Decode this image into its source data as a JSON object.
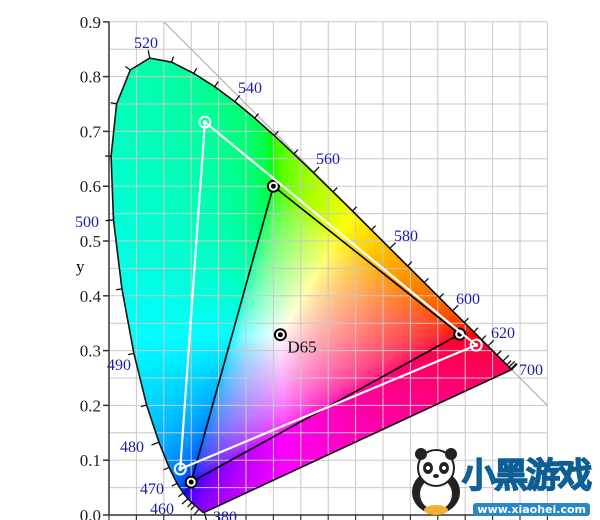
{
  "chart_data": {
    "type": "chromaticity-diagram",
    "ylabel": "y",
    "xlabel": "",
    "xlim": [
      0,
      0.8
    ],
    "ylim": [
      0,
      0.9
    ],
    "grid": true,
    "y_tick_labels": [
      "0.0",
      "0.1",
      "0.2",
      "0.3",
      "0.4",
      "0.5",
      "0.6",
      "0.7",
      "0.8",
      "0.9"
    ],
    "y_ticks": [
      0,
      0.1,
      0.2,
      0.3,
      0.4,
      0.5,
      0.6,
      0.7,
      0.8,
      0.9
    ],
    "spectral_locus": [
      [
        380,
        0.1741,
        0.005
      ],
      [
        400,
        0.1733,
        0.0048
      ],
      [
        420,
        0.1714,
        0.0051
      ],
      [
        440,
        0.1644,
        0.0109
      ],
      [
        450,
        0.1566,
        0.0177
      ],
      [
        455,
        0.151,
        0.0227
      ],
      [
        460,
        0.144,
        0.0297
      ],
      [
        465,
        0.1355,
        0.0399
      ],
      [
        470,
        0.1241,
        0.0578
      ],
      [
        475,
        0.1096,
        0.0868
      ],
      [
        480,
        0.0913,
        0.1327
      ],
      [
        485,
        0.0687,
        0.2007
      ],
      [
        490,
        0.0454,
        0.295
      ],
      [
        495,
        0.0235,
        0.4127
      ],
      [
        500,
        0.0082,
        0.5384
      ],
      [
        505,
        0.0039,
        0.6548
      ],
      [
        510,
        0.0139,
        0.7502
      ],
      [
        515,
        0.0389,
        0.812
      ],
      [
        520,
        0.0743,
        0.8338
      ],
      [
        525,
        0.1142,
        0.8262
      ],
      [
        530,
        0.1547,
        0.8059
      ],
      [
        535,
        0.1929,
        0.7816
      ],
      [
        540,
        0.2296,
        0.7543
      ],
      [
        545,
        0.2658,
        0.7243
      ],
      [
        550,
        0.3016,
        0.6923
      ],
      [
        555,
        0.3373,
        0.6589
      ],
      [
        560,
        0.3731,
        0.6245
      ],
      [
        565,
        0.4087,
        0.5896
      ],
      [
        570,
        0.4441,
        0.5547
      ],
      [
        575,
        0.4788,
        0.5202
      ],
      [
        580,
        0.5125,
        0.4866
      ],
      [
        585,
        0.5448,
        0.4544
      ],
      [
        590,
        0.5752,
        0.4242
      ],
      [
        595,
        0.6029,
        0.3965
      ],
      [
        600,
        0.627,
        0.3725
      ],
      [
        605,
        0.6482,
        0.3514
      ],
      [
        610,
        0.6658,
        0.334
      ],
      [
        615,
        0.6801,
        0.3197
      ],
      [
        620,
        0.6915,
        0.3083
      ],
      [
        630,
        0.7079,
        0.292
      ],
      [
        640,
        0.719,
        0.2809
      ],
      [
        650,
        0.726,
        0.274
      ],
      [
        660,
        0.73,
        0.27
      ],
      [
        680,
        0.7334,
        0.2666
      ],
      [
        700,
        0.7347,
        0.2653
      ]
    ],
    "wavelength_labels": [
      "380",
      "460",
      "470",
      "480",
      "490",
      "500",
      "520",
      "540",
      "560",
      "580",
      "600",
      "620",
      "700"
    ],
    "white_point": {
      "label": "D65",
      "x": 0.3127,
      "y": 0.329
    },
    "gamuts": [
      {
        "color": "#000000",
        "primaries": [
          [
            0.64,
            0.33
          ],
          [
            0.3,
            0.6
          ],
          [
            0.15,
            0.06
          ]
        ]
      },
      {
        "color": "#ffffff",
        "primaries": [
          [
            0.67,
            0.31
          ],
          [
            0.175,
            0.717
          ],
          [
            0.13,
            0.084
          ]
        ]
      }
    ],
    "label_color": "#1c1ca8",
    "boundary_line": "x + y = 1"
  },
  "watermark": {
    "title": "小黑游戏",
    "url": "www.xiaohei.com"
  }
}
